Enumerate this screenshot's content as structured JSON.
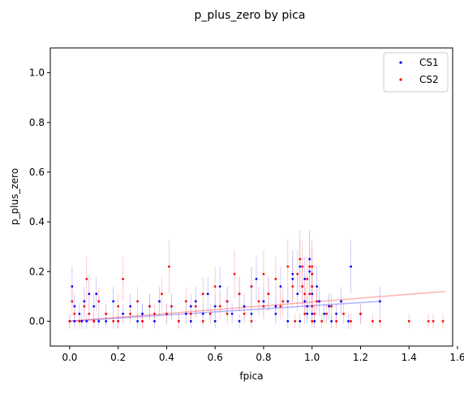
{
  "chart_data": {
    "type": "scatter",
    "title": "p_plus_zero by pica",
    "xlabel": "fpica",
    "ylabel": "p_plus_zero",
    "xlim": [
      -0.08,
      1.58
    ],
    "ylim": [
      -0.1,
      1.1
    ],
    "xticks": [
      0.0,
      0.2,
      0.4,
      0.6,
      0.8,
      1.0,
      1.2,
      1.4,
      1.6
    ],
    "yticks": [
      0.0,
      0.2,
      0.4,
      0.6,
      0.8,
      1.0
    ],
    "xtick_labels": [
      "0.0",
      "0.2",
      "0.4",
      "0.6",
      "0.8",
      "1.0",
      "1.2",
      "1.4",
      "1.6"
    ],
    "ytick_labels": [
      "0.0",
      "0.2",
      "0.4",
      "0.6",
      "0.8",
      "1.0"
    ],
    "grid": false,
    "legend_position": "top-right",
    "series": [
      {
        "name": "CS1",
        "color": "#0000ff",
        "errorbar_color": "#9999ff",
        "x": [
          0.0,
          0.01,
          0.02,
          0.02,
          0.04,
          0.06,
          0.07,
          0.08,
          0.1,
          0.11,
          0.12,
          0.15,
          0.18,
          0.2,
          0.22,
          0.25,
          0.28,
          0.3,
          0.33,
          0.35,
          0.37,
          0.4,
          0.42,
          0.45,
          0.48,
          0.5,
          0.52,
          0.55,
          0.57,
          0.6,
          0.62,
          0.65,
          0.67,
          0.7,
          0.72,
          0.75,
          0.77,
          0.8,
          0.82,
          0.85,
          0.87,
          0.9,
          0.92,
          0.94,
          0.95,
          0.96,
          0.97,
          0.98,
          0.99,
          1.0,
          1.0,
          1.0,
          1.01,
          1.02,
          1.03,
          1.05,
          1.07,
          1.08,
          1.1,
          1.12,
          1.15,
          1.16,
          1.2,
          1.28,
          0.3,
          0.5,
          0.7,
          0.9,
          0.95,
          0.98,
          1.0,
          0.15,
          0.6,
          0.85,
          0.97,
          1.0,
          0.05,
          0.75,
          0.92,
          0.99
        ],
        "y": [
          0.0,
          0.14,
          0.06,
          0.0,
          0.03,
          0.08,
          0.0,
          0.11,
          0.06,
          0.11,
          0.0,
          0.03,
          0.08,
          0.0,
          0.03,
          0.06,
          0.0,
          0.03,
          0.06,
          0.0,
          0.08,
          0.03,
          0.06,
          0.0,
          0.03,
          0.06,
          0.08,
          0.03,
          0.11,
          0.06,
          0.14,
          0.08,
          0.03,
          0.11,
          0.06,
          0.14,
          0.17,
          0.08,
          0.11,
          0.03,
          0.14,
          0.08,
          0.19,
          0.11,
          0.22,
          0.14,
          0.17,
          0.06,
          0.25,
          0.19,
          0.03,
          0.11,
          0.0,
          0.14,
          0.08,
          0.03,
          0.06,
          0.0,
          0.03,
          0.08,
          0.0,
          0.22,
          0.03,
          0.08,
          0.03,
          0.0,
          0.0,
          0.0,
          0.0,
          0.03,
          0.06,
          0.0,
          0.0,
          0.06,
          0.08,
          0.14,
          0.0,
          0.03,
          0.17,
          0.2
        ],
        "trend": {
          "x": [
            0.0,
            1.28
          ],
          "y": [
            0.0,
            0.08
          ]
        }
      },
      {
        "name": "CS2",
        "color": "#ff0000",
        "errorbar_color": "#ff9999",
        "x": [
          0.0,
          0.01,
          0.02,
          0.04,
          0.06,
          0.07,
          0.08,
          0.1,
          0.12,
          0.15,
          0.18,
          0.2,
          0.22,
          0.25,
          0.28,
          0.3,
          0.33,
          0.35,
          0.38,
          0.4,
          0.41,
          0.42,
          0.45,
          0.48,
          0.5,
          0.52,
          0.55,
          0.58,
          0.6,
          0.62,
          0.65,
          0.68,
          0.7,
          0.72,
          0.75,
          0.78,
          0.8,
          0.82,
          0.85,
          0.87,
          0.9,
          0.92,
          0.94,
          0.95,
          0.96,
          0.97,
          0.98,
          0.99,
          1.0,
          1.0,
          1.0,
          1.01,
          1.02,
          1.04,
          1.06,
          1.08,
          1.1,
          1.13,
          1.16,
          1.2,
          1.25,
          1.28,
          1.4,
          1.48,
          1.5,
          1.54,
          0.3,
          0.55,
          0.75,
          0.93,
          0.97,
          1.0,
          0.2,
          0.65,
          0.88,
          0.96,
          0.99,
          0.1,
          0.8,
          1.0
        ],
        "y": [
          0.0,
          0.08,
          0.03,
          0.0,
          0.06,
          0.17,
          0.03,
          0.0,
          0.08,
          0.03,
          0.0,
          0.06,
          0.17,
          0.03,
          0.08,
          0.0,
          0.06,
          0.03,
          0.11,
          0.03,
          0.22,
          0.06,
          0.0,
          0.08,
          0.03,
          0.06,
          0.11,
          0.03,
          0.14,
          0.06,
          0.08,
          0.19,
          0.11,
          0.03,
          0.14,
          0.08,
          0.19,
          0.11,
          0.17,
          0.06,
          0.22,
          0.14,
          0.19,
          0.25,
          0.22,
          0.11,
          0.17,
          0.22,
          0.14,
          0.06,
          0.19,
          0.03,
          0.08,
          0.0,
          0.03,
          0.06,
          0.0,
          0.03,
          0.0,
          0.03,
          0.0,
          0.0,
          0.0,
          0.0,
          0.0,
          0.0,
          0.0,
          0.0,
          0.0,
          0.0,
          0.03,
          0.0,
          0.0,
          0.03,
          0.08,
          0.14,
          0.11,
          0.0,
          0.06,
          0.22
        ],
        "trend": {
          "x": [
            0.0,
            1.55
          ],
          "y": [
            0.0,
            0.12
          ]
        }
      }
    ]
  }
}
